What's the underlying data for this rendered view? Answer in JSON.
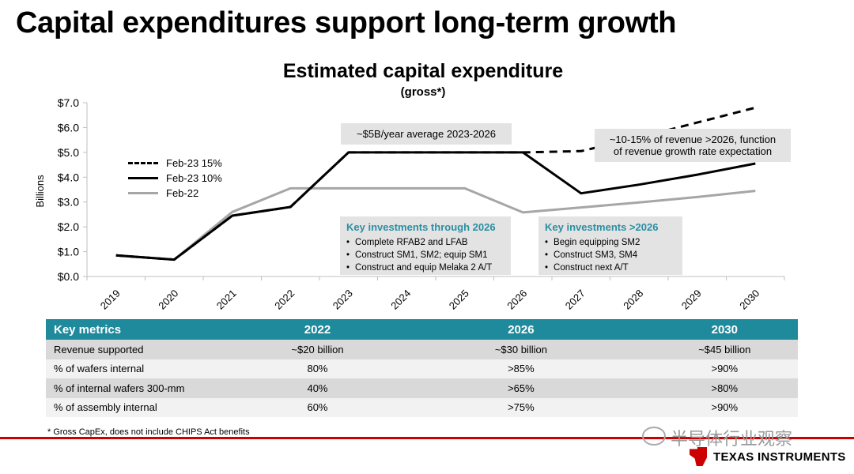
{
  "slide": {
    "title": "Capital expenditures support long-term growth",
    "footnote": "* Gross CapEx, does not include CHIPS Act benefits",
    "watermark": "半导体行业观察",
    "logo_text": "TEXAS INSTRUMENTS"
  },
  "chart_data": {
    "type": "line",
    "title": "Estimated capital expenditure",
    "subtitle": "(gross*)",
    "ylabel": "Billions",
    "ylim": [
      0,
      7
    ],
    "yticks": [
      "$0.0",
      "$1.0",
      "$2.0",
      "$3.0",
      "$4.0",
      "$5.0",
      "$6.0",
      "$7.0"
    ],
    "categories": [
      "2019",
      "2020",
      "2021",
      "2022",
      "2023",
      "2024",
      "2025",
      "2026",
      "2027",
      "2028",
      "2029",
      "2030"
    ],
    "grid": false,
    "legend_position": "left",
    "series": [
      {
        "name": "Feb-23 15%",
        "style": "dashed",
        "color": "#000000",
        "values": [
          0.85,
          0.68,
          2.45,
          2.8,
          5.0,
          5.0,
          5.0,
          5.0,
          5.05,
          5.6,
          6.2,
          6.8
        ]
      },
      {
        "name": "Feb-23 10%",
        "style": "solid",
        "color": "#000000",
        "values": [
          0.85,
          0.68,
          2.45,
          2.8,
          5.0,
          5.0,
          5.0,
          5.0,
          3.35,
          3.7,
          4.1,
          4.55
        ]
      },
      {
        "name": "Feb-22",
        "style": "solid",
        "color": "#a6a6a6",
        "values": [
          0.85,
          0.68,
          2.6,
          3.55,
          3.55,
          3.55,
          3.55,
          2.58,
          2.78,
          2.98,
          3.2,
          3.45
        ]
      }
    ],
    "annotations": {
      "average": "~$5B/year average 2023-2026",
      "post2026_line1": "~10-15% of revenue >2026, function",
      "post2026_line2": "of revenue growth rate expectation"
    }
  },
  "boxes": {
    "through2026": {
      "heading": "Key investments through 2026",
      "items": [
        "Complete RFAB2 and LFAB",
        "Construct SM1, SM2; equip SM1",
        "Construct and equip Melaka 2 A/T"
      ]
    },
    "post2026": {
      "heading": "Key investments >2026",
      "items": [
        "Begin equipping SM2",
        "Construct SM3, SM4",
        "Construct next A/T"
      ]
    }
  },
  "metrics": {
    "headers": [
      "Key metrics",
      "2022",
      "2026",
      "2030"
    ],
    "rows": [
      [
        "Revenue supported",
        "~$20 billion",
        "~$30 billion",
        "~$45 billion"
      ],
      [
        "% of wafers internal",
        "80%",
        ">85%",
        ">90%"
      ],
      [
        "% of internal wafers 300-mm",
        "40%",
        ">65%",
        ">80%"
      ],
      [
        "% of assembly internal",
        "60%",
        ">75%",
        ">90%"
      ]
    ]
  },
  "colors": {
    "accent": "#1f8a9c",
    "box_heading": "#2a8fa3",
    "brand_red": "#cc0000",
    "feb22": "#a6a6a6"
  }
}
